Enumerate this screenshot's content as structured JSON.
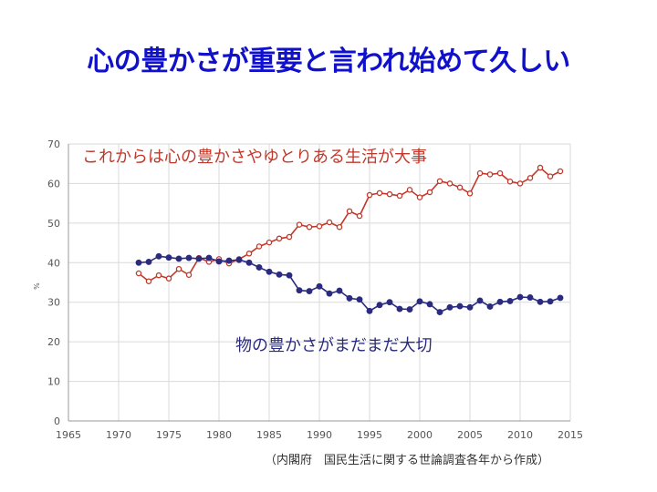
{
  "slide": {
    "title": "心の豊かさが重要と言われ始めて久しい",
    "source": "（内閣府　国民生活に関する世論調査各年から作成）"
  },
  "colors": {
    "title": "#1111cc",
    "series_red": "#c0392b",
    "series_blue": "#2b2b80",
    "grid": "#d9d9d9"
  },
  "chart_data": {
    "type": "line",
    "title": "",
    "xlabel": "",
    "ylabel": "%",
    "xlim": [
      1965,
      2015
    ],
    "ylim": [
      0,
      70
    ],
    "xticks": [
      1965,
      1970,
      1975,
      1980,
      1985,
      1990,
      1995,
      2000,
      2005,
      2010,
      2015
    ],
    "yticks": [
      0,
      10,
      20,
      30,
      40,
      50,
      60,
      70
    ],
    "grid": true,
    "series": [
      {
        "name": "これからは心の豊かさやゆとりある生活が大事",
        "color": "#c0392b",
        "marker": "open-circle",
        "x": [
          1972,
          1973,
          1974,
          1975,
          1976,
          1977,
          1978,
          1979,
          1980,
          1981,
          1982,
          1983,
          1984,
          1985,
          1986,
          1987,
          1988,
          1989,
          1990,
          1991,
          1992,
          1993,
          1994,
          1995,
          1996,
          1997,
          1998,
          1999,
          2000,
          2001,
          2002,
          2003,
          2004,
          2005,
          2006,
          2007,
          2008,
          2009,
          2010,
          2011,
          2012,
          2013,
          2014
        ],
        "values": [
          37.3,
          35.3,
          36.8,
          36.0,
          38.4,
          36.9,
          41.2,
          40.2,
          40.9,
          39.8,
          40.9,
          42.3,
          44.1,
          45.1,
          46.1,
          46.5,
          49.6,
          49.0,
          49.2,
          50.2,
          49.0,
          53.0,
          51.8,
          57.1,
          57.6,
          57.3,
          56.9,
          58.4,
          56.5,
          57.8,
          60.6,
          60.0,
          59.0,
          57.5,
          62.6,
          62.3,
          62.6,
          60.5,
          60.0,
          61.4,
          64.0,
          61.8,
          63.1
        ]
      },
      {
        "name": "物の豊かさがまだまだ大切",
        "color": "#2b2b80",
        "marker": "filled-circle",
        "x": [
          1972,
          1973,
          1974,
          1975,
          1976,
          1977,
          1978,
          1979,
          1980,
          1981,
          1982,
          1983,
          1984,
          1985,
          1986,
          1987,
          1988,
          1989,
          1990,
          1991,
          1992,
          1993,
          1994,
          1995,
          1996,
          1997,
          1998,
          1999,
          2000,
          2001,
          2002,
          2003,
          2004,
          2005,
          2006,
          2007,
          2008,
          2009,
          2010,
          2011,
          2012,
          2013,
          2014
        ],
        "values": [
          40.0,
          40.2,
          41.6,
          41.3,
          41.0,
          41.2,
          41.0,
          41.2,
          40.3,
          40.5,
          40.7,
          40.0,
          38.8,
          37.7,
          37.0,
          36.8,
          33.0,
          32.8,
          34.0,
          32.2,
          32.9,
          31.0,
          30.7,
          27.8,
          29.3,
          30.0,
          28.3,
          28.2,
          30.2,
          29.5,
          27.5,
          28.7,
          29.0,
          28.7,
          30.4,
          28.9,
          30.1,
          30.3,
          31.3,
          31.2,
          30.1,
          30.2,
          31.1
        ]
      }
    ]
  }
}
